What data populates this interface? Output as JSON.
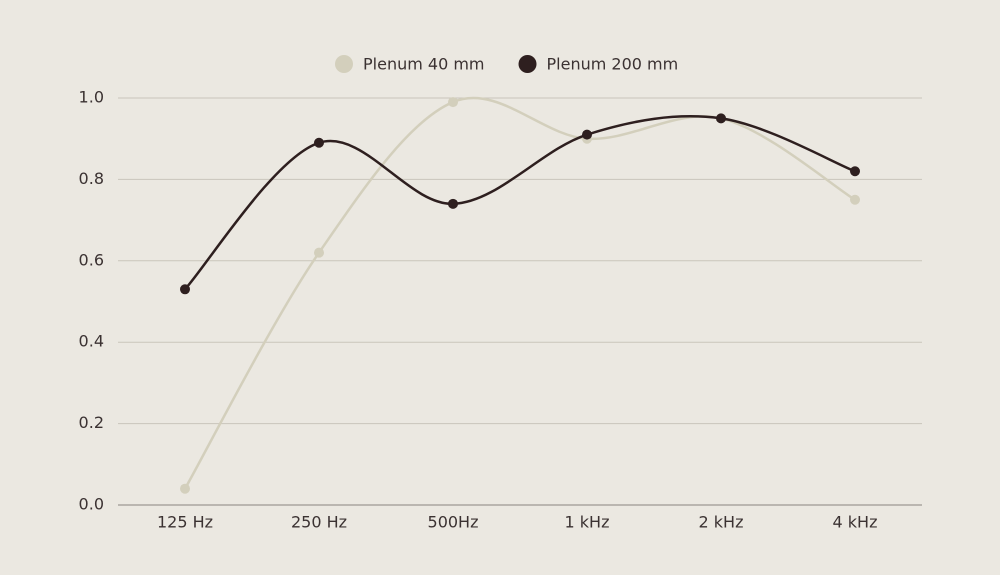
{
  "chart_data": {
    "type": "line",
    "categories": [
      "125 Hz",
      "250 Hz",
      "500Hz",
      "1 kHz",
      "2 kHz",
      "4 kHz"
    ],
    "series": [
      {
        "name": "Plenum 40 mm",
        "color": "#d3cfbc",
        "values": [
          0.04,
          0.62,
          0.99,
          0.9,
          0.95,
          0.75
        ]
      },
      {
        "name": "Plenum 200 mm",
        "color": "#2e1f1f",
        "values": [
          0.53,
          0.89,
          0.74,
          0.91,
          0.95,
          0.82
        ]
      }
    ],
    "ylim": [
      0,
      1
    ],
    "yticks": [
      {
        "value": 0,
        "label": "0.0"
      },
      0.2,
      0.4,
      0.6,
      0.8,
      {
        "value": 1,
        "label": "1.0"
      }
    ],
    "grid": true,
    "smooth": true,
    "legend": "top"
  }
}
